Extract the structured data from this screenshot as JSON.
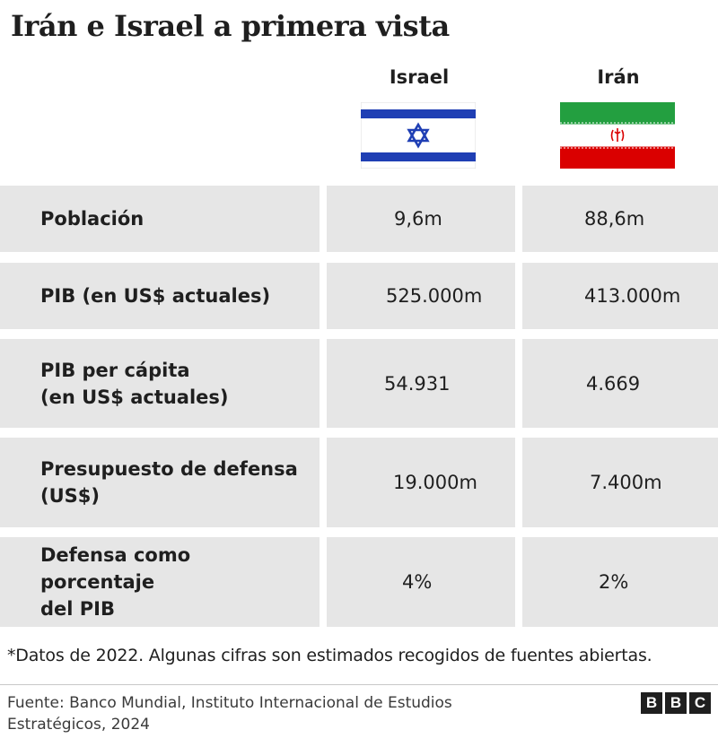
{
  "title": "Irán e Israel a primera vista",
  "columns": {
    "israel": "Israel",
    "iran": "Irán"
  },
  "chart_data": {
    "type": "table",
    "columns": [
      "Israel",
      "Irán"
    ],
    "rows": [
      {
        "label_lines": [
          "Población"
        ],
        "israel": "9,6m",
        "iran": "88,6m"
      },
      {
        "label_lines": [
          "PIB (en US$ actuales)"
        ],
        "israel": "525.000m",
        "iran": "413.000m"
      },
      {
        "label_lines": [
          "PIB per cápita",
          "(en US$ actuales)"
        ],
        "israel": "54.931",
        "iran": "4.669"
      },
      {
        "label_lines": [
          "Presupuesto de defensa",
          "(US$)"
        ],
        "israel": "19.000m",
        "iran": "7.400m"
      },
      {
        "label_lines": [
          "Defensa como porcentaje",
          "del PIB"
        ],
        "israel": "4%",
        "iran": "2%"
      }
    ]
  },
  "note": "*Datos de 2022. Algunas cifras son estimados recogidos de fuentes abiertas.",
  "source": "Fuente: Banco Mundial, Instituto Internacional de Estudios Estratégicos, 2024",
  "logo": [
    "B",
    "B",
    "C"
  ],
  "colors": {
    "cell_bg": "#e6e6e6",
    "israel_blue": "#1f3fb4",
    "iran_green": "#239f40",
    "iran_red": "#da0000"
  },
  "icons": {
    "israel_flag": "flag-israel-icon",
    "iran_flag": "flag-iran-icon"
  }
}
